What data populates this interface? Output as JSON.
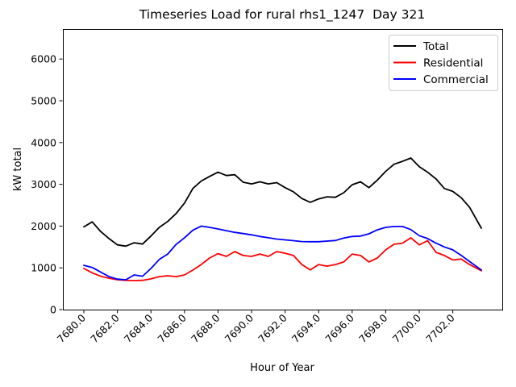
{
  "chart_data": {
    "type": "line",
    "title": "Timeseries Load for rural rhs1_1247  Day 321",
    "xlabel": "Hour of Year",
    "ylabel": "kW total",
    "legend_position": "upper right",
    "grid": false,
    "xlim": [
      7678.75,
      7704.95
    ],
    "ylim": [
      0,
      6718
    ],
    "xticks": {
      "values": [
        7680,
        7682,
        7684,
        7686,
        7688,
        7690,
        7692,
        7694,
        7696,
        7698,
        7700,
        7702
      ],
      "labels": [
        "7680.0",
        "7682.0",
        "7684.0",
        "7686.0",
        "7688.0",
        "7690.0",
        "7692.0",
        "7694.0",
        "7696.0",
        "7698.0",
        "7700.0",
        "7702.0"
      ]
    },
    "yticks": {
      "values": [
        0,
        1000,
        2000,
        3000,
        4000,
        5000,
        6000
      ],
      "labels": [
        "0",
        "1000",
        "2000",
        "3000",
        "4000",
        "5000",
        "6000"
      ]
    },
    "x": [
      7680.0,
      7680.5,
      7681.0,
      7681.5,
      7682.0,
      7682.5,
      7683.0,
      7683.5,
      7684.0,
      7684.5,
      7685.0,
      7685.5,
      7686.0,
      7686.5,
      7687.0,
      7687.5,
      7688.0,
      7688.5,
      7689.0,
      7689.5,
      7690.0,
      7690.5,
      7691.0,
      7691.5,
      7692.0,
      7692.5,
      7693.0,
      7693.5,
      7694.0,
      7694.5,
      7695.0,
      7695.5,
      7696.0,
      7696.5,
      7697.0,
      7697.5,
      7698.0,
      7698.5,
      7699.0,
      7699.5,
      7700.0,
      7700.5,
      7701.0,
      7701.5,
      7702.0,
      7702.5,
      7703.0,
      7703.7
    ],
    "series": [
      {
        "name": "Total",
        "color": "#000000",
        "values": [
          1980,
          2100,
          1870,
          1700,
          1550,
          1520,
          1600,
          1570,
          1760,
          1970,
          2110,
          2300,
          2550,
          2900,
          3080,
          3190,
          3290,
          3210,
          3230,
          3050,
          3010,
          3060,
          3010,
          3040,
          2920,
          2820,
          2660,
          2570,
          2650,
          2700,
          2690,
          2800,
          2990,
          3060,
          2920,
          3100,
          3310,
          3480,
          3550,
          3630,
          3420,
          3290,
          3130,
          2900,
          2830,
          2680,
          2450,
          1950
        ]
      },
      {
        "name": "Residential",
        "color": "#ff0000",
        "values": [
          985,
          880,
          800,
          750,
          715,
          700,
          695,
          700,
          735,
          790,
          810,
          790,
          830,
          945,
          1080,
          1235,
          1340,
          1275,
          1390,
          1295,
          1275,
          1330,
          1275,
          1390,
          1350,
          1295,
          1080,
          950,
          1080,
          1040,
          1080,
          1140,
          1330,
          1295,
          1140,
          1235,
          1430,
          1565,
          1590,
          1720,
          1550,
          1650,
          1370,
          1295,
          1190,
          1210,
          1080,
          930
        ]
      },
      {
        "name": "Commercial",
        "color": "#0000ff",
        "values": [
          1060,
          1010,
          900,
          790,
          730,
          715,
          830,
          800,
          985,
          1200,
          1330,
          1560,
          1720,
          1900,
          2000,
          1970,
          1930,
          1890,
          1850,
          1820,
          1790,
          1750,
          1720,
          1690,
          1670,
          1650,
          1630,
          1625,
          1625,
          1640,
          1655,
          1715,
          1750,
          1760,
          1815,
          1910,
          1970,
          1990,
          1990,
          1915,
          1770,
          1700,
          1590,
          1500,
          1430,
          1300,
          1150,
          950
        ]
      }
    ]
  }
}
